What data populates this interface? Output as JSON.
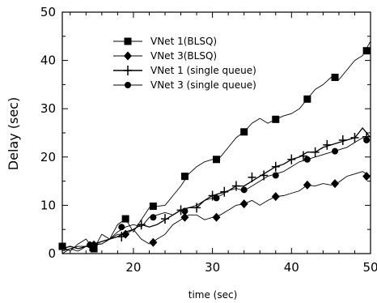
{
  "chart_data": {
    "type": "line",
    "title": "",
    "xlabel": "time (sec)",
    "ylabel": "Delay (sec)",
    "xlim": [
      11,
      50
    ],
    "ylim": [
      0,
      50
    ],
    "xticks": [
      20,
      30,
      40,
      50
    ],
    "yticks": [
      0,
      10,
      20,
      30,
      40,
      50
    ],
    "grid": false,
    "legend_position": "top-left",
    "series": [
      {
        "name": "VNet 1(BLSQ)",
        "marker": "square",
        "line": [
          [
            11,
            1.5
          ],
          [
            12,
            0.5
          ],
          [
            13,
            2
          ],
          [
            14,
            3
          ],
          [
            15,
            1
          ],
          [
            16,
            4
          ],
          [
            17,
            3
          ],
          [
            18,
            6
          ],
          [
            19,
            7.2
          ],
          [
            20,
            4.5
          ],
          [
            21,
            7
          ],
          [
            22,
            9.5
          ],
          [
            23,
            9.8
          ],
          [
            24,
            10
          ],
          [
            25,
            12
          ],
          [
            26,
            14
          ],
          [
            27,
            16.5
          ],
          [
            28,
            18
          ],
          [
            29,
            19
          ],
          [
            30,
            19.5
          ],
          [
            31,
            20
          ],
          [
            32,
            22
          ],
          [
            33,
            24
          ],
          [
            34,
            25.2
          ],
          [
            35,
            27
          ],
          [
            36,
            28
          ],
          [
            37,
            27
          ],
          [
            38,
            27.8
          ],
          [
            39,
            28.5
          ],
          [
            40,
            29
          ],
          [
            41,
            30
          ],
          [
            42,
            32
          ],
          [
            43,
            34
          ],
          [
            44,
            35
          ],
          [
            45,
            36.5
          ],
          [
            46,
            36
          ],
          [
            47,
            38
          ],
          [
            48,
            40
          ],
          [
            49,
            41
          ],
          [
            50,
            44
          ]
        ],
        "markers": [
          [
            11,
            1.5
          ],
          [
            15,
            1
          ],
          [
            19,
            7.2
          ],
          [
            22.5,
            9.8
          ],
          [
            26.5,
            16
          ],
          [
            30.5,
            19.5
          ],
          [
            34,
            25.2
          ],
          [
            38,
            27.8
          ],
          [
            42,
            32
          ],
          [
            45.5,
            36.5
          ],
          [
            49.5,
            42
          ]
        ]
      },
      {
        "name": "VNet 3(BLSQ)",
        "marker": "diamond",
        "line": [
          [
            11,
            0
          ],
          [
            12,
            1
          ],
          [
            13,
            0.5
          ],
          [
            14,
            1.5
          ],
          [
            15,
            1.8
          ],
          [
            16,
            2
          ],
          [
            17,
            3
          ],
          [
            18,
            4
          ],
          [
            19,
            4
          ],
          [
            20,
            5
          ],
          [
            21,
            3
          ],
          [
            22,
            2
          ],
          [
            23,
            3
          ],
          [
            24,
            4
          ],
          [
            25,
            6
          ],
          [
            26,
            7
          ],
          [
            27,
            8
          ],
          [
            28,
            8
          ],
          [
            29,
            7
          ],
          [
            30,
            7.5
          ],
          [
            31,
            8
          ],
          [
            32,
            9
          ],
          [
            33,
            10
          ],
          [
            34,
            10.3
          ],
          [
            35,
            11
          ],
          [
            36,
            10
          ],
          [
            37,
            11
          ],
          [
            38,
            11.8
          ],
          [
            39,
            12
          ],
          [
            40,
            12.5
          ],
          [
            41,
            13
          ],
          [
            42,
            14.2
          ],
          [
            43,
            14
          ],
          [
            44,
            14.5
          ],
          [
            45,
            14.2
          ],
          [
            46,
            14.8
          ],
          [
            47,
            16
          ],
          [
            48,
            16.5
          ],
          [
            49,
            17
          ],
          [
            50,
            16
          ]
        ],
        "markers": [
          [
            15,
            1.8
          ],
          [
            19,
            4
          ],
          [
            22.5,
            2.3
          ],
          [
            26.5,
            7.5
          ],
          [
            30.5,
            7.5
          ],
          [
            34,
            10.3
          ],
          [
            38,
            11.8
          ],
          [
            42,
            14.2
          ],
          [
            45.5,
            14.5
          ],
          [
            49.5,
            16
          ]
        ]
      },
      {
        "name": "VNet 1 (single queue)",
        "marker": "plus",
        "line": [
          [
            11,
            1
          ],
          [
            12,
            1.5
          ],
          [
            13,
            1
          ],
          [
            14,
            1.5
          ],
          [
            15,
            2
          ],
          [
            16,
            2.5
          ],
          [
            17,
            3
          ],
          [
            18,
            3.5
          ],
          [
            19,
            4.5
          ],
          [
            20,
            5
          ],
          [
            21,
            6
          ],
          [
            22,
            5.5
          ],
          [
            23,
            6
          ],
          [
            24,
            7
          ],
          [
            25,
            8
          ],
          [
            26,
            9
          ],
          [
            27,
            9.5
          ],
          [
            28,
            9.5
          ],
          [
            29,
            11
          ],
          [
            30,
            12
          ],
          [
            31,
            12.5
          ],
          [
            32,
            13
          ],
          [
            33,
            14
          ],
          [
            34,
            14
          ],
          [
            35,
            15
          ],
          [
            36,
            16
          ],
          [
            37,
            17
          ],
          [
            38,
            18
          ],
          [
            39,
            18.5
          ],
          [
            40,
            19.5
          ],
          [
            41,
            20
          ],
          [
            42,
            21
          ],
          [
            43,
            21
          ],
          [
            44,
            22
          ],
          [
            45,
            22.5
          ],
          [
            46,
            23
          ],
          [
            47,
            23.5
          ],
          [
            48,
            24
          ],
          [
            49,
            26
          ],
          [
            50,
            24
          ]
        ],
        "markers": [
          [
            14.5,
            1.5
          ],
          [
            18.5,
            3.5
          ],
          [
            21,
            6
          ],
          [
            24,
            7.2
          ],
          [
            26,
            9
          ],
          [
            28,
            9.5
          ],
          [
            30,
            12
          ],
          [
            31.5,
            12.8
          ],
          [
            33,
            14
          ],
          [
            35,
            15.8
          ],
          [
            36.5,
            16.2
          ],
          [
            38,
            18
          ],
          [
            40,
            19.5
          ],
          [
            41.5,
            20.2
          ],
          [
            43,
            21
          ],
          [
            44.5,
            22.5
          ],
          [
            46.5,
            23.5
          ],
          [
            48,
            24
          ],
          [
            49.5,
            24.2
          ]
        ]
      },
      {
        "name": "VNet 3 (single queue)",
        "marker": "circle",
        "line": [
          [
            11,
            0.5
          ],
          [
            12,
            1
          ],
          [
            13,
            1.5
          ],
          [
            14,
            1.5
          ],
          [
            15,
            2
          ],
          [
            16,
            2
          ],
          [
            17,
            3
          ],
          [
            18,
            4.5
          ],
          [
            19,
            5.5
          ],
          [
            20,
            6
          ],
          [
            21,
            5.5
          ],
          [
            22,
            7.5
          ],
          [
            23,
            8
          ],
          [
            24,
            8.5
          ],
          [
            25,
            8
          ],
          [
            26,
            9
          ],
          [
            27,
            9.5
          ],
          [
            28,
            10
          ],
          [
            29,
            11
          ],
          [
            30,
            11.5
          ],
          [
            31,
            12
          ],
          [
            32,
            13
          ],
          [
            33,
            13.5
          ],
          [
            34,
            13
          ],
          [
            35,
            14
          ],
          [
            36,
            15
          ],
          [
            37,
            16
          ],
          [
            38,
            16.5
          ],
          [
            39,
            17
          ],
          [
            40,
            18
          ],
          [
            41,
            19
          ],
          [
            42,
            19.5
          ],
          [
            43,
            20
          ],
          [
            44,
            20.5
          ],
          [
            45,
            21
          ],
          [
            46,
            21.5
          ],
          [
            47,
            22
          ],
          [
            48,
            23
          ],
          [
            49,
            24
          ],
          [
            50,
            23.5
          ]
        ],
        "markers": [
          [
            14.5,
            1.8
          ],
          [
            18.5,
            5.5
          ],
          [
            22.5,
            7.5
          ],
          [
            26.5,
            8.8
          ],
          [
            30.5,
            11.5
          ],
          [
            34,
            13.2
          ],
          [
            38,
            16.2
          ],
          [
            42,
            19.5
          ],
          [
            45.5,
            21.2
          ],
          [
            49.5,
            23.5
          ]
        ]
      }
    ]
  }
}
